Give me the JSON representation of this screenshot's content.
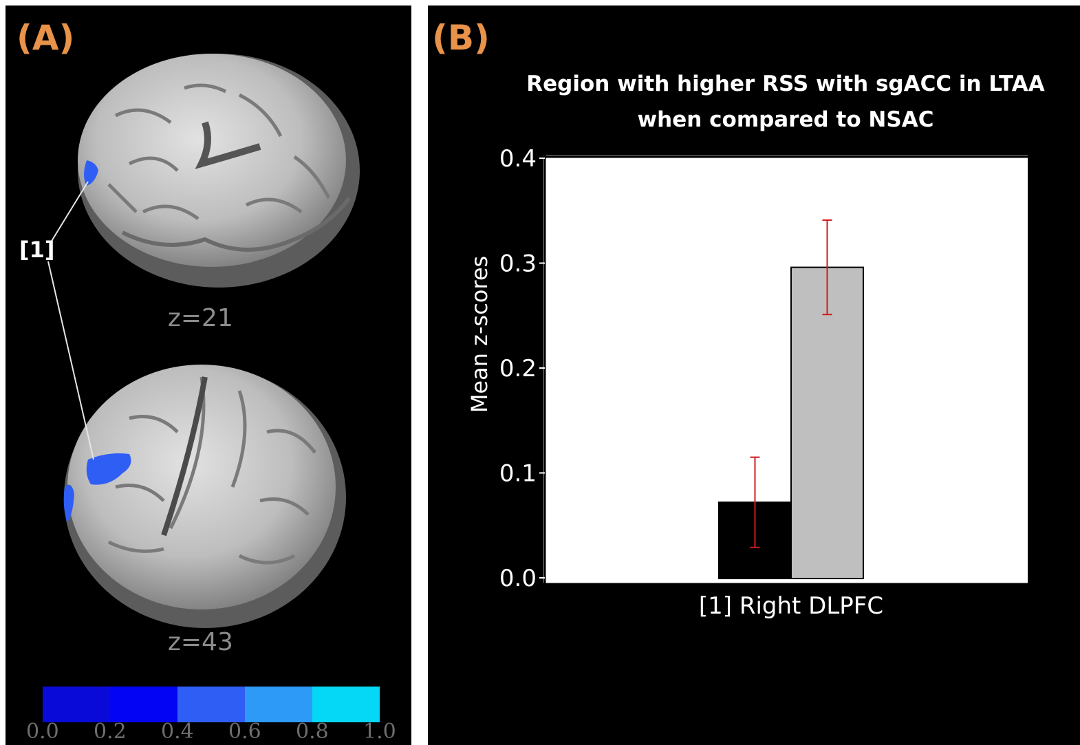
{
  "panel_a": {
    "label": "(A)",
    "slices": [
      {
        "label": "z=21"
      },
      {
        "label": "z=43"
      }
    ],
    "region_tag": "[1]",
    "color_scale": {
      "colors": [
        "#0a0ad8",
        "#0404f4",
        "#2f5ef4",
        "#2e9af8",
        "#04d8f6"
      ],
      "tick_labels": [
        "0.0",
        "0.2",
        "0.4",
        "0.6",
        "0.8",
        "1.0"
      ]
    }
  },
  "panel_b": {
    "label": "(B)",
    "title_lines": [
      "Region with higher RSS with sgACC in LTAA",
      "when compared to NSAC"
    ]
  },
  "chart_data": {
    "type": "bar",
    "title": "Region with higher RSS with sgACC in LTAA when compared to NSAC",
    "categories": [
      "[1] Right DLPFC"
    ],
    "series": [
      {
        "values": [
          0.072
        ],
        "error": [
          0.043
        ],
        "color": "#000000"
      },
      {
        "values": [
          0.296
        ],
        "error": [
          0.045
        ],
        "color": "#bfbfbf"
      }
    ],
    "error_bar_color": "#d11a1a",
    "xlabel": "",
    "ylabel": "Mean z-scores",
    "ylim": [
      0,
      0.4
    ],
    "yticks": [
      "0.0",
      "0.1",
      "0.2",
      "0.3",
      "0.4"
    ],
    "grid": false
  }
}
